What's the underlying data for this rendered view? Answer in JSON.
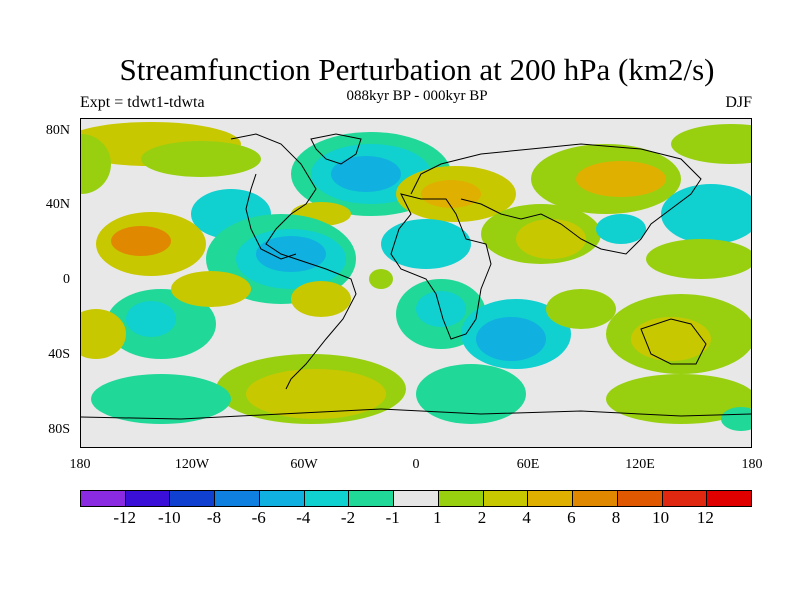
{
  "title": "Streamfunction Perturbation at 200 hPa (km2/s)",
  "subtitle": "088kyr BP - 000kyr BP",
  "left_label": "Expt = tdwt1-tdwta",
  "right_label": "DJF",
  "y_axis": [
    "80N",
    "40N",
    "0",
    "40S",
    "80S"
  ],
  "x_axis": [
    "180",
    "120W",
    "60W",
    "0",
    "60E",
    "120E",
    "180"
  ],
  "colorbar": {
    "labels": [
      "-12",
      "-10",
      "-8",
      "-6",
      "-4",
      "-2",
      "-1",
      "1",
      "2",
      "4",
      "6",
      "8",
      "10",
      "12"
    ],
    "colors": [
      "#8a2be2",
      "#3a10d8",
      "#1040d0",
      "#1080e0",
      "#10b0e0",
      "#10d0d0",
      "#20d898",
      "#e6e6e6",
      "#98d010",
      "#c8c800",
      "#e0b000",
      "#e08800",
      "#e05800",
      "#e02810",
      "#e00000"
    ]
  }
}
